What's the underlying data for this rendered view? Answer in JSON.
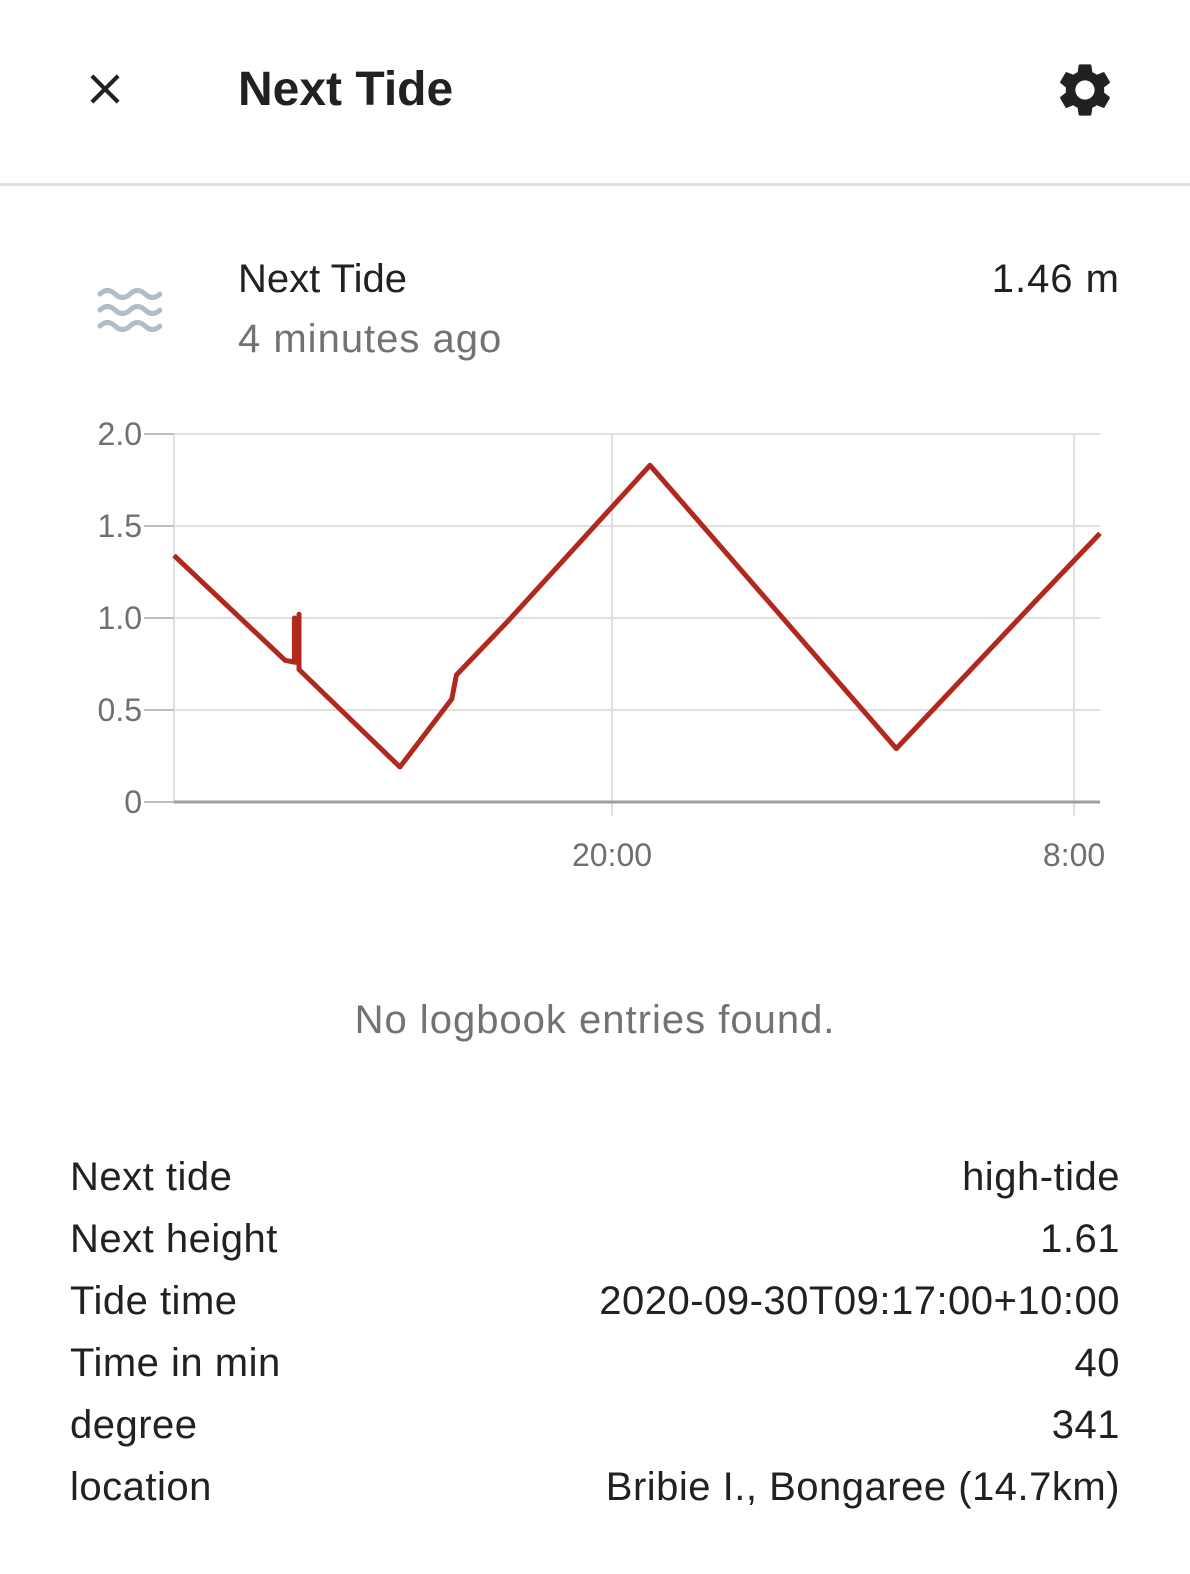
{
  "header": {
    "title": "Next Tide",
    "close_icon": "close-icon",
    "settings_icon": "gear-icon"
  },
  "entity": {
    "name": "Next Tide",
    "last_changed": "4 minutes ago",
    "state": "1.46 m",
    "icon": "waves-icon",
    "icon_color": "#b0bec5"
  },
  "chart_data": {
    "type": "line",
    "y_ticks": [
      "2.0",
      "1.5",
      "1.0",
      "0.5",
      "0"
    ],
    "x_ticks": [
      "20:00",
      "8:00"
    ],
    "ylim": [
      0,
      2.0
    ],
    "line_color": "#b0281e",
    "grid": true,
    "series": [
      {
        "values": [
          [
            0.0,
            1.34
          ],
          [
            0.12,
            0.77
          ],
          [
            0.13,
            0.76
          ],
          [
            0.13,
            1.0
          ],
          [
            0.13,
            0.76
          ],
          [
            0.135,
            0.76
          ],
          [
            0.135,
            1.02
          ],
          [
            0.135,
            0.72
          ],
          [
            0.244,
            0.19
          ],
          [
            0.3,
            0.56
          ],
          [
            0.305,
            0.69
          ],
          [
            0.36,
            0.98
          ],
          [
            0.514,
            1.83
          ],
          [
            0.78,
            0.29
          ],
          [
            0.93,
            1.09
          ],
          [
            1.0,
            1.46
          ]
        ]
      }
    ]
  },
  "logbook": {
    "empty_message": "No logbook entries found."
  },
  "attributes": [
    {
      "label": "Next tide",
      "value": "high-tide"
    },
    {
      "label": "Next height",
      "value": "1.61"
    },
    {
      "label": "Tide time",
      "value": "2020-09-30T09:17:00+10:00"
    },
    {
      "label": "Time in min",
      "value": "40"
    },
    {
      "label": "degree",
      "value": "341"
    },
    {
      "label": "location",
      "value": "Bribie I., Bongaree (14.7km)"
    }
  ]
}
